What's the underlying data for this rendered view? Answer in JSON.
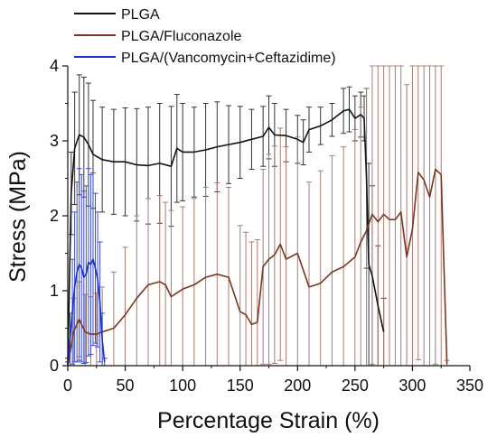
{
  "chart_data": {
    "type": "line",
    "title": "",
    "xlabel": "Percentage Strain (%)",
    "ylabel": "Stress (MPa)",
    "xlim": [
      0,
      350
    ],
    "ylim": [
      0,
      4
    ],
    "x_ticks": [
      0,
      50,
      100,
      150,
      200,
      250,
      300,
      350
    ],
    "y_ticks": [
      0,
      1,
      2,
      3,
      4
    ],
    "grid": false,
    "legend_position": "top-left",
    "series": [
      {
        "name": "PLGA",
        "color": "#111111",
        "x": [
          0,
          3,
          6,
          10,
          14,
          18,
          22,
          30,
          40,
          50,
          60,
          70,
          80,
          90,
          95,
          100,
          110,
          120,
          130,
          140,
          150,
          160,
          170,
          175,
          180,
          190,
          200,
          205,
          210,
          220,
          230,
          240,
          245,
          250,
          255,
          258,
          260,
          262,
          265,
          270,
          275
        ],
        "y": [
          0,
          2.3,
          2.9,
          3.08,
          3.05,
          2.95,
          2.82,
          2.75,
          2.72,
          2.72,
          2.68,
          2.67,
          2.7,
          2.66,
          2.9,
          2.85,
          2.85,
          2.88,
          2.92,
          2.95,
          2.98,
          3.02,
          3.06,
          3.18,
          3.08,
          3.07,
          3.02,
          2.98,
          3.15,
          3.2,
          3.28,
          3.4,
          3.42,
          3.3,
          3.35,
          3.3,
          2.5,
          1.35,
          1.2,
          0.8,
          0.45
        ],
        "error": [
          0.1,
          0.55,
          0.75,
          0.8,
          0.8,
          0.82,
          0.72,
          0.7,
          0.7,
          0.72,
          0.75,
          0.78,
          0.8,
          0.8,
          0.72,
          0.65,
          0.6,
          0.62,
          0.6,
          0.52,
          0.48,
          0.4,
          0.4,
          0.42,
          0.42,
          0.35,
          0.32,
          0.3,
          0.3,
          0.25,
          0.22,
          0.3,
          0.3,
          0.3,
          0.3,
          0.3,
          1.2,
          1.35,
          1.2,
          0.8,
          0.45
        ]
      },
      {
        "name": "PLGA/Fluconazole",
        "color": "#7b3621",
        "x": [
          0,
          5,
          10,
          15,
          20,
          25,
          30,
          40,
          50,
          60,
          70,
          80,
          85,
          90,
          100,
          110,
          120,
          130,
          140,
          150,
          155,
          160,
          165,
          170,
          175,
          180,
          185,
          190,
          200,
          210,
          220,
          230,
          240,
          250,
          255,
          260,
          265,
          270,
          275,
          280,
          285,
          290,
          295,
          300,
          305,
          310,
          315,
          320,
          325,
          330
        ],
        "y": [
          0,
          0.45,
          0.62,
          0.45,
          0.42,
          0.42,
          0.45,
          0.5,
          0.68,
          0.9,
          1.08,
          1.12,
          1.08,
          0.92,
          1.02,
          1.08,
          1.18,
          1.22,
          1.18,
          0.72,
          0.68,
          0.55,
          0.58,
          1.32,
          1.42,
          1.48,
          1.62,
          1.42,
          1.5,
          1.05,
          1.1,
          1.25,
          1.32,
          1.45,
          1.65,
          1.8,
          2.02,
          1.92,
          2.02,
          1.95,
          1.95,
          2.05,
          1.45,
          1.82,
          2.58,
          2.48,
          2.25,
          2.62,
          2.55,
          0.02
        ],
        "error": [
          0.05,
          0.45,
          0.5,
          0.5,
          0.5,
          0.55,
          0.6,
          0.75,
          0.9,
          1.1,
          1.15,
          1.15,
          1.1,
          1.15,
          1.1,
          1.15,
          1.2,
          1.22,
          1.2,
          1.15,
          1.1,
          1.1,
          1.1,
          1.3,
          1.4,
          1.45,
          1.55,
          1.5,
          1.55,
          1.4,
          1.5,
          1.55,
          1.6,
          1.7,
          1.8,
          1.9,
          2.0,
          2.1,
          2.1,
          2.15,
          2.2,
          2.25,
          2.3,
          2.3,
          2.5,
          2.5,
          2.5,
          2.6,
          2.6,
          0.05
        ]
      },
      {
        "name": "PLGA/(Vancomycin+Ceftazidime)",
        "color": "#1a2fc8",
        "x": [
          0,
          2,
          4,
          6,
          8,
          10,
          12,
          14,
          16,
          18,
          20,
          22,
          24,
          26,
          28,
          30,
          32
        ],
        "y": [
          0,
          0.35,
          0.72,
          1.05,
          1.25,
          1.35,
          1.3,
          1.18,
          1.22,
          1.38,
          1.35,
          1.42,
          1.3,
          1.15,
          0.85,
          0.35,
          0.05
        ],
        "error": [
          0.05,
          0.35,
          0.7,
          1.0,
          1.2,
          1.28,
          1.25,
          1.15,
          1.18,
          1.25,
          1.2,
          1.15,
          1.0,
          0.9,
          0.8,
          0.35,
          0.05
        ]
      }
    ]
  }
}
